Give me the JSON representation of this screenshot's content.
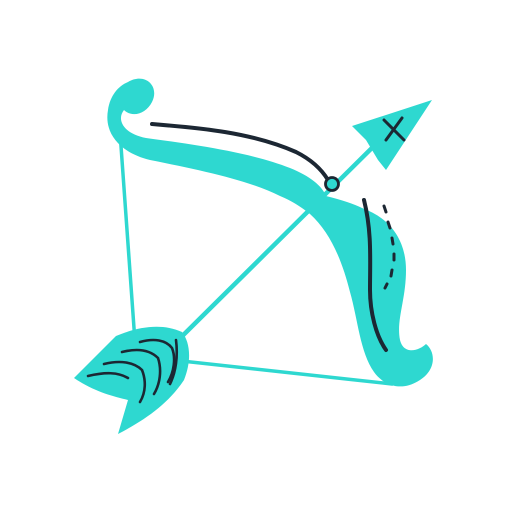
{
  "image": {
    "subject": "bow-and-arrow-icon",
    "colors": {
      "background": "#ffffff",
      "teal": "#2ed8d0",
      "ink": "#1c2733"
    }
  }
}
